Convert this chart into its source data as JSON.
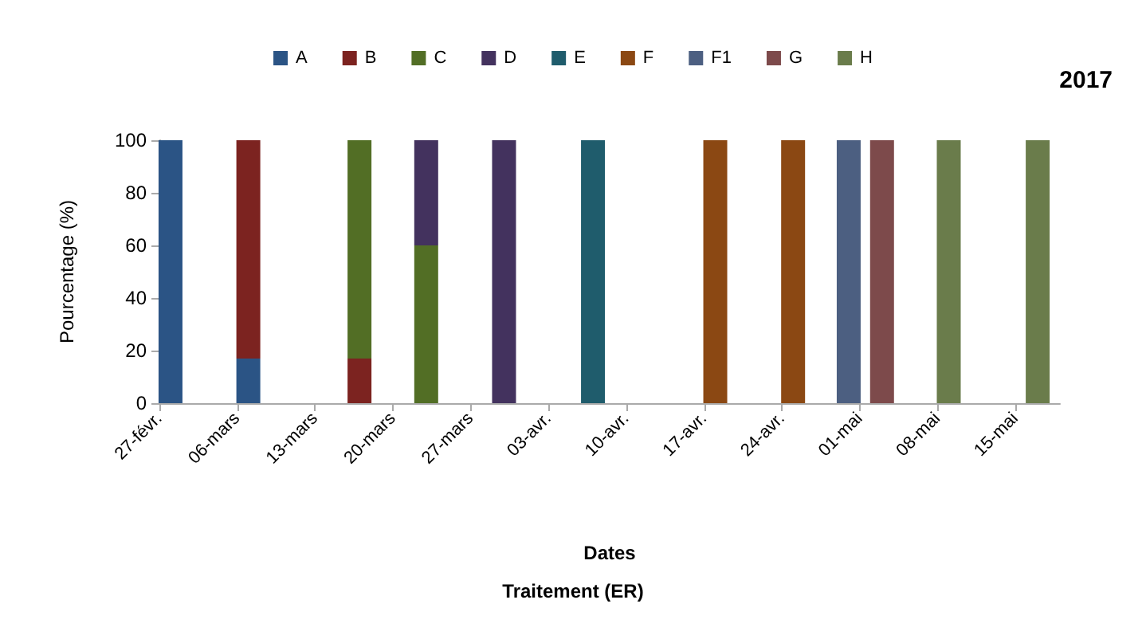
{
  "chart_data": {
    "type": "bar",
    "stacked": true,
    "title": "2017",
    "xlabel": "Dates",
    "ylabel": "Pourcentage (%)",
    "annotations": [
      "Traitement (ER)"
    ],
    "x": [
      "2017-02-28",
      "2017-03-07",
      "2017-03-17",
      "2017-03-23",
      "2017-03-30",
      "2017-04-07",
      "2017-04-18",
      "2017-04-25",
      "2017-04-30",
      "2017-05-03",
      "2017-05-09",
      "2017-05-17"
    ],
    "series": [
      {
        "name": "A",
        "color": "#2b5485",
        "values": [
          100,
          17,
          null,
          null,
          null,
          null,
          null,
          null,
          null,
          null,
          null,
          null
        ]
      },
      {
        "name": "B",
        "color": "#7c2320",
        "values": [
          null,
          83,
          17,
          null,
          null,
          null,
          null,
          null,
          null,
          null,
          null,
          null
        ]
      },
      {
        "name": "C",
        "color": "#526e25",
        "values": [
          null,
          null,
          83,
          60,
          null,
          null,
          null,
          null,
          null,
          null,
          null,
          null
        ]
      },
      {
        "name": "D",
        "color": "#43325e",
        "values": [
          null,
          null,
          null,
          40,
          100,
          null,
          null,
          null,
          null,
          null,
          null,
          null
        ]
      },
      {
        "name": "E",
        "color": "#1f5c6c",
        "values": [
          null,
          null,
          null,
          null,
          null,
          100,
          null,
          null,
          null,
          null,
          null,
          null
        ]
      },
      {
        "name": "F",
        "color": "#8b4813",
        "values": [
          null,
          null,
          null,
          null,
          null,
          null,
          100,
          100,
          null,
          null,
          null,
          null
        ]
      },
      {
        "name": "F1",
        "color": "#4c5f81",
        "values": [
          null,
          null,
          null,
          null,
          null,
          null,
          null,
          null,
          100,
          null,
          null,
          null
        ]
      },
      {
        "name": "G",
        "color": "#7d4a4b",
        "values": [
          null,
          null,
          null,
          null,
          null,
          null,
          null,
          null,
          null,
          100,
          null,
          null
        ]
      },
      {
        "name": "H",
        "color": "#6a7c4b",
        "values": [
          null,
          null,
          null,
          null,
          null,
          null,
          null,
          null,
          null,
          null,
          100,
          100
        ]
      }
    ],
    "xlim": [
      "2017-02-27",
      "2017-05-19"
    ],
    "xticks": [
      {
        "value": "2017-02-27",
        "label": "27-févr."
      },
      {
        "value": "2017-03-06",
        "label": "06-mars"
      },
      {
        "value": "2017-03-13",
        "label": "13-mars"
      },
      {
        "value": "2017-03-20",
        "label": "20-mars"
      },
      {
        "value": "2017-03-27",
        "label": "27-mars"
      },
      {
        "value": "2017-04-03",
        "label": "03-avr."
      },
      {
        "value": "2017-04-10",
        "label": "10-avr."
      },
      {
        "value": "2017-04-17",
        "label": "17-avr."
      },
      {
        "value": "2017-04-24",
        "label": "24-avr."
      },
      {
        "value": "2017-05-01",
        "label": "01-mai"
      },
      {
        "value": "2017-05-08",
        "label": "08-mai"
      },
      {
        "value": "2017-05-15",
        "label": "15-mai"
      }
    ],
    "ylim": [
      0,
      100
    ],
    "yticks": [
      0,
      20,
      40,
      60,
      80,
      100
    ],
    "grid": false,
    "legend": "top"
  }
}
